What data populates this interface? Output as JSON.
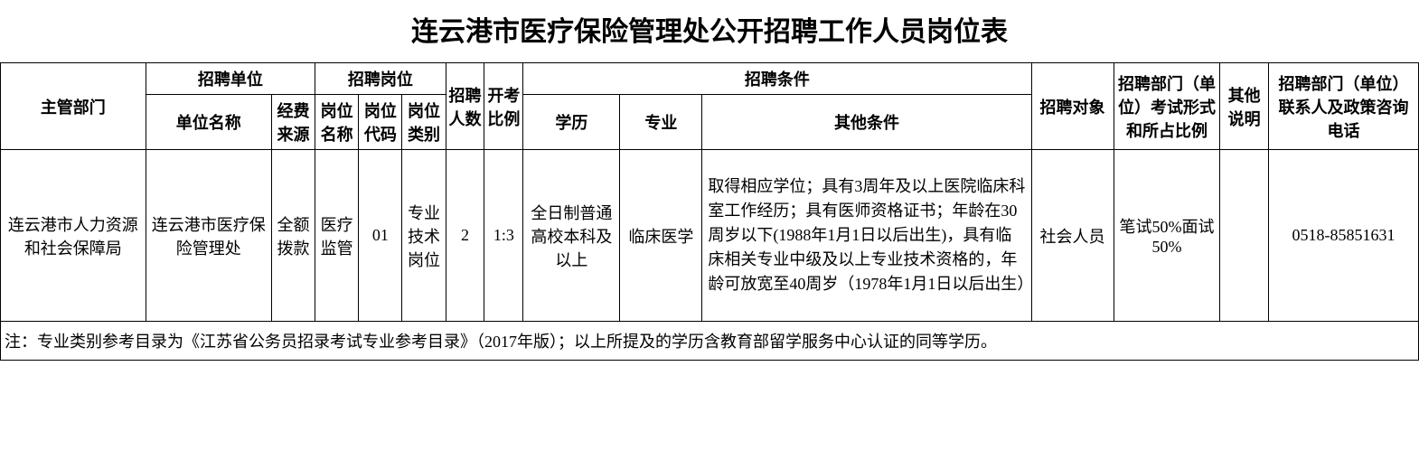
{
  "title": {
    "text": "连云港市医疗保险管理处公开招聘工作人员岗位表",
    "fontsize": 30
  },
  "header": {
    "fontsize": 18,
    "dept": "主管部门",
    "recruit_unit": "招聘单位",
    "unit_name": "单位名称",
    "fund_source": "经费来源",
    "recruit_post": "招聘岗位",
    "post_name": "岗位名称",
    "post_code": "岗位代码",
    "post_type": "岗位类别",
    "num": "招聘人数",
    "ratio": "开考比例",
    "conditions": "招聘条件",
    "education": "学历",
    "major": "专业",
    "other": "其他条件",
    "target": "招聘对象",
    "exam_form": "招聘部门（单位）考试形式和所占比例",
    "remark": "其他说明",
    "contact": "招聘部门（单位） 联系人及政策咨询电话"
  },
  "row": {
    "fontsize": 18,
    "dept": "连云港市人力资源和社会保障局",
    "unit_name": "连云港市医疗保险管理处",
    "fund_source": "全额拨款",
    "post_name": "医疗监管",
    "post_code": "01",
    "post_type": "专业技术岗位",
    "num": "2",
    "ratio": "1:3",
    "education": "全日制普通高校本科及以上",
    "major": "临床医学",
    "other": "取得相应学位；具有3周年及以上医院临床科室工作经历；具有医师资格证书；年龄在30周岁以下(1988年1月1日以后出生)，具有临床相关专业中级及以上专业技术资格的，年龄可放宽至40周岁（1978年1月1日以后出生）",
    "target": "社会人员",
    "exam_form": "笔试50%面试50%",
    "remark": "",
    "contact": "0518-85851631"
  },
  "footnote": {
    "text": "注：专业类别参考目录为《江苏省公务员招录考试专业参考目录》（2017年版）；以上所提及的学历含教育部留学服务中心认证的同等学历。",
    "fontsize": 18
  },
  "colwidths": {
    "dept": 150,
    "unit_name": 130,
    "fund": 45,
    "post_name": 45,
    "post_code": 45,
    "post_type": 45,
    "num": 40,
    "ratio": 40,
    "edu": 100,
    "major": 85,
    "other": 340,
    "target": 85,
    "exam": 110,
    "remark": 50,
    "contact": 155
  },
  "colors": {
    "background": "#ffffff",
    "border": "#000000",
    "text": "#000000"
  }
}
